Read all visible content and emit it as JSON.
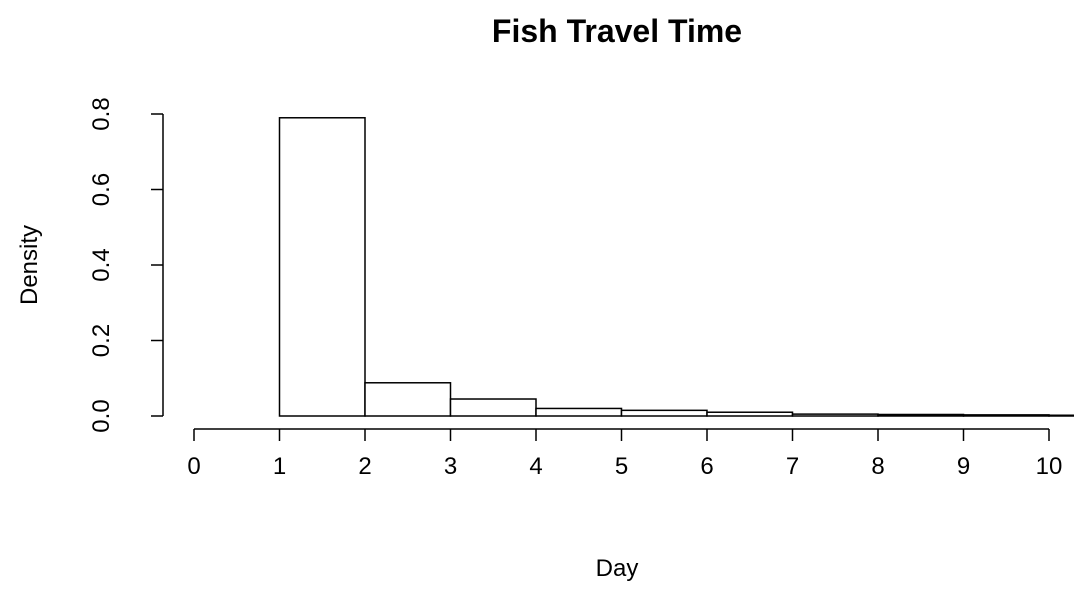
{
  "chart_data": {
    "type": "bar",
    "subtype": "histogram",
    "title": "Fish Travel Time",
    "xlabel": "Day",
    "ylabel": "Density",
    "xlim": [
      0,
      10
    ],
    "ylim": [
      0,
      0.8
    ],
    "x_ticks": [
      "0",
      "1",
      "2",
      "3",
      "4",
      "5",
      "6",
      "7",
      "8",
      "9",
      "10"
    ],
    "y_ticks": [
      "0.0",
      "0.2",
      "0.4",
      "0.6",
      "0.8"
    ],
    "bins": [
      {
        "from": 1,
        "to": 2,
        "density": 0.79
      },
      {
        "from": 2,
        "to": 3,
        "density": 0.088
      },
      {
        "from": 3,
        "to": 4,
        "density": 0.045
      },
      {
        "from": 4,
        "to": 5,
        "density": 0.02
      },
      {
        "from": 5,
        "to": 6,
        "density": 0.015
      },
      {
        "from": 6,
        "to": 7,
        "density": 0.01
      },
      {
        "from": 7,
        "to": 8,
        "density": 0.005
      },
      {
        "from": 8,
        "to": 9,
        "density": 0.004
      },
      {
        "from": 9,
        "to": 10,
        "density": 0.003
      },
      {
        "from": 10,
        "to": 11,
        "density": 0.002
      }
    ],
    "fill": "#ffffff",
    "stroke": "#000000",
    "grid": false,
    "legend": "none"
  }
}
